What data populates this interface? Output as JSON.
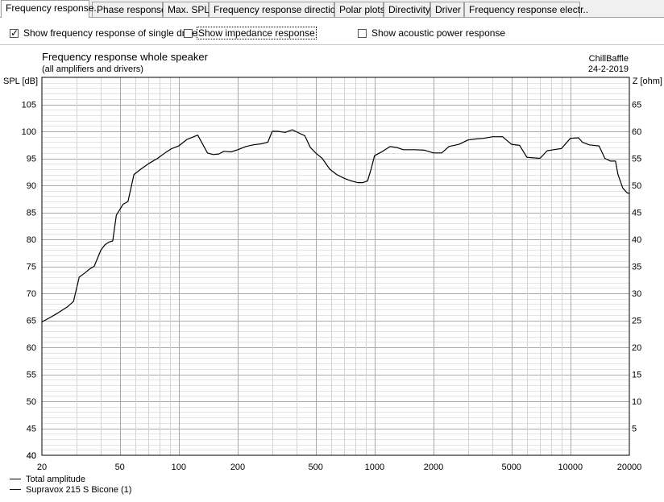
{
  "tabs": [
    {
      "label": "Frequency response.",
      "active": true
    },
    {
      "label": "Phase response",
      "active": false
    },
    {
      "label": "Max. SPL",
      "active": false
    },
    {
      "label": "Frequency response directions",
      "active": false
    },
    {
      "label": "Polar plots",
      "active": false
    },
    {
      "label": "Directivity",
      "active": false
    },
    {
      "label": "Driver",
      "active": false
    },
    {
      "label": "Frequency response electr..",
      "active": false
    }
  ],
  "options": {
    "single_drive": {
      "label": "Show frequency response of single drive",
      "checked": true
    },
    "impedance": {
      "label": "Show impedance response",
      "checked": false
    },
    "acoustic_power": {
      "label": "Show acoustic power response",
      "checked": false
    }
  },
  "chart_data": {
    "type": "line",
    "title": "Frequency response whole speaker",
    "subtitle": "(all amplifiers and drivers)",
    "brand": "ChillBaffle",
    "date": "24-2-2019",
    "ylabel": "SPL [dB]",
    "y2label": "Z [ohm]",
    "x_scale": "log",
    "xlim": [
      20,
      20000
    ],
    "ylim": [
      40,
      110
    ],
    "y2lim": [
      0,
      70
    ],
    "x_ticks": [
      20,
      50,
      100,
      200,
      500,
      1000,
      2000,
      5000,
      10000,
      20000
    ],
    "x_tick_labels": [
      "20",
      "50",
      "100",
      "200",
      "500",
      "1000",
      "2000",
      "5000",
      "10000",
      "20000"
    ],
    "y_ticks": [
      40,
      45,
      50,
      55,
      60,
      65,
      70,
      75,
      80,
      85,
      90,
      95,
      100,
      105
    ],
    "y2_ticks": [
      5,
      10,
      15,
      20,
      25,
      30,
      35,
      40,
      45,
      50,
      55,
      60,
      65
    ],
    "grid": true,
    "legend_position": "bottom-left",
    "series": [
      {
        "name": "Total amplitude",
        "color": "#000000",
        "x": [
          20,
          22,
          24,
          27,
          29,
          31,
          33,
          35,
          37,
          40,
          42,
          44,
          46,
          48,
          52,
          55,
          59,
          64,
          70,
          78,
          85,
          92,
          100,
          110,
          125,
          140,
          150,
          160,
          170,
          185,
          200,
          220,
          240,
          265,
          285,
          300,
          320,
          350,
          380,
          410,
          440,
          470,
          500,
          540,
          590,
          640,
          700,
          760,
          820,
          870,
          920,
          960,
          1000,
          1100,
          1200,
          1300,
          1400,
          1600,
          1800,
          2000,
          2200,
          2400,
          2700,
          3000,
          3300,
          3600,
          4000,
          4500,
          5000,
          5500,
          6000,
          7000,
          7600,
          8200,
          9000,
          10000,
          11000,
          11500,
          12500,
          14000,
          15000,
          16000,
          17000,
          17500,
          18500,
          19500,
          20000
        ],
        "y": [
          64.7,
          65.5,
          66.3,
          67.5,
          68.5,
          73.0,
          73.7,
          74.5,
          75.0,
          78.0,
          79.0,
          79.5,
          79.7,
          84.5,
          86.5,
          87.0,
          92.0,
          93.0,
          94.0,
          95.0,
          96.0,
          96.8,
          97.3,
          98.5,
          99.3,
          96.0,
          95.7,
          95.8,
          96.3,
          96.2,
          96.6,
          97.2,
          97.5,
          97.7,
          98.0,
          100.0,
          100.0,
          99.8,
          100.3,
          99.7,
          99.2,
          97.0,
          96.0,
          95.0,
          93.0,
          92.0,
          91.3,
          90.8,
          90.5,
          90.5,
          90.8,
          93.0,
          95.5,
          96.3,
          97.2,
          97.0,
          96.6,
          96.6,
          96.5,
          96.0,
          96.0,
          97.2,
          97.6,
          98.4,
          98.6,
          98.7,
          99.0,
          99.0,
          97.6,
          97.4,
          95.2,
          95.0,
          96.4,
          96.6,
          96.8,
          98.7,
          98.8,
          98.0,
          97.5,
          97.3,
          95.0,
          94.5,
          94.5,
          92.0,
          89.5,
          88.6,
          88.5
        ]
      },
      {
        "name": "Supravox 215 S Bicone (1)",
        "color": "#0000cc",
        "x": [],
        "y": []
      }
    ]
  }
}
